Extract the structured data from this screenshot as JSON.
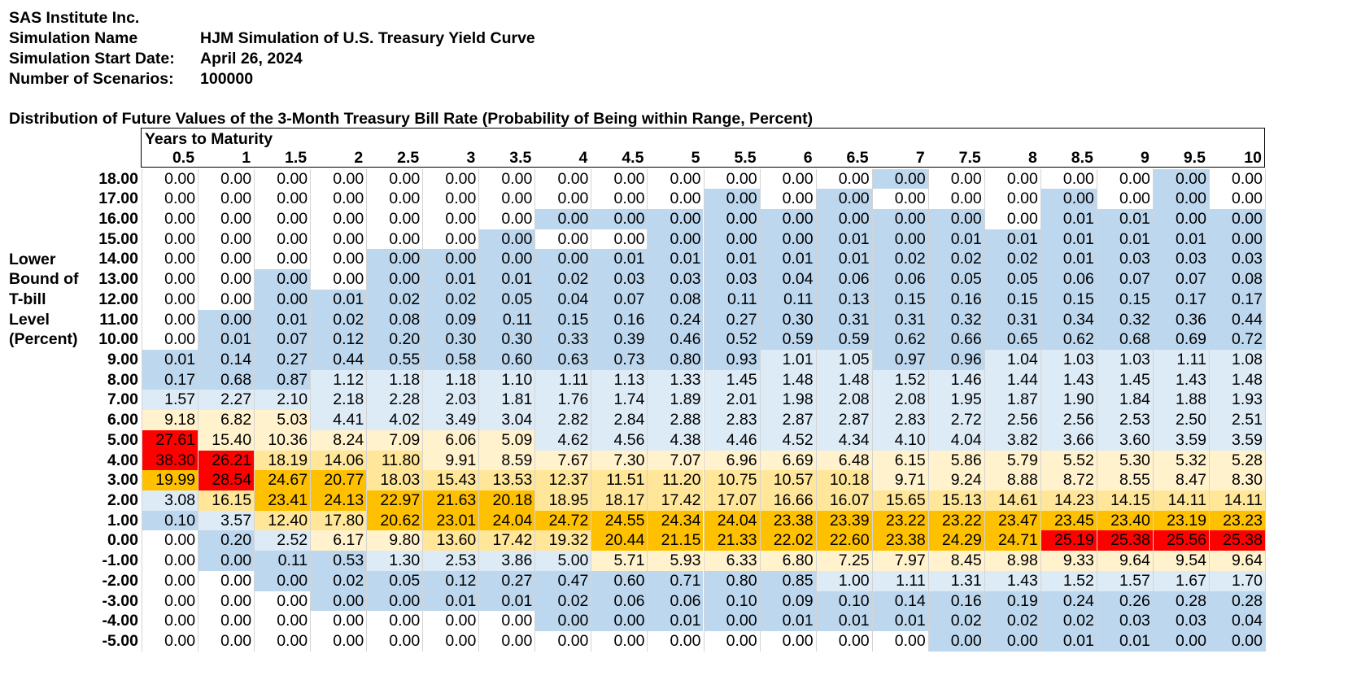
{
  "header": {
    "company": "SAS Institute Inc.",
    "sim_name_label": "Simulation Name",
    "sim_name_value": "HJM Simulation of U.S. Treasury Yield Curve",
    "start_label": "Simulation Start Date:",
    "start_value": "April 26, 2024",
    "scenarios_label": "Number of Scenarios:",
    "scenarios_value": "100000"
  },
  "table": {
    "title": "Distribution of Future Values of the 3-Month Treasury Bill Rate (Probability of Being within Range, Percent)",
    "years_header": "Years to Maturity",
    "side_label": [
      "Lower",
      "Bound of",
      "T-bill",
      "Level",
      "(Percent)"
    ],
    "years": [
      "0.5",
      "1",
      "1.5",
      "2",
      "2.5",
      "3",
      "3.5",
      "4",
      "4.5",
      "5",
      "5.5",
      "6",
      "6.5",
      "7",
      "7.5",
      "8",
      "8.5",
      "9",
      "9.5",
      "10"
    ],
    "rows": [
      {
        "label": "18.00",
        "values": [
          "0.00",
          "0.00",
          "0.00",
          "0.00",
          "0.00",
          "0.00",
          "0.00",
          "0.00",
          "0.00",
          "0.00",
          "0.00",
          "0.00",
          "0.00",
          "0.00",
          "0.00",
          "0.00",
          "0.00",
          "0.00",
          "0.00",
          "0.00"
        ],
        "fills": [
          "w",
          "w",
          "w",
          "w",
          "w",
          "w",
          "w",
          "w",
          "w",
          "w",
          "w",
          "w",
          "w",
          "b",
          "w",
          "w",
          "w",
          "w",
          "b",
          "w"
        ]
      },
      {
        "label": "17.00",
        "values": [
          "0.00",
          "0.00",
          "0.00",
          "0.00",
          "0.00",
          "0.00",
          "0.00",
          "0.00",
          "0.00",
          "0.00",
          "0.00",
          "0.00",
          "0.00",
          "0.00",
          "0.00",
          "0.00",
          "0.00",
          "0.00",
          "0.00",
          "0.00"
        ],
        "fills": [
          "w",
          "w",
          "w",
          "w",
          "w",
          "w",
          "w",
          "w",
          "w",
          "w",
          "b",
          "w",
          "b",
          "w",
          "w",
          "w",
          "b",
          "w",
          "b",
          "w"
        ]
      },
      {
        "label": "16.00",
        "values": [
          "0.00",
          "0.00",
          "0.00",
          "0.00",
          "0.00",
          "0.00",
          "0.00",
          "0.00",
          "0.00",
          "0.00",
          "0.00",
          "0.00",
          "0.00",
          "0.00",
          "0.00",
          "0.00",
          "0.01",
          "0.01",
          "0.00",
          "0.00"
        ],
        "fills": [
          "w",
          "w",
          "w",
          "w",
          "w",
          "w",
          "w",
          "b",
          "b",
          "b",
          "b",
          "b",
          "b",
          "b",
          "b",
          "w",
          "b",
          "b",
          "b",
          "b"
        ]
      },
      {
        "label": "15.00",
        "values": [
          "0.00",
          "0.00",
          "0.00",
          "0.00",
          "0.00",
          "0.00",
          "0.00",
          "0.00",
          "0.00",
          "0.00",
          "0.00",
          "0.00",
          "0.01",
          "0.00",
          "0.01",
          "0.01",
          "0.01",
          "0.01",
          "0.01",
          "0.00"
        ],
        "fills": [
          "w",
          "w",
          "w",
          "w",
          "w",
          "w",
          "b",
          "w",
          "w",
          "b",
          "b",
          "b",
          "b",
          "b",
          "b",
          "b",
          "b",
          "b",
          "b",
          "b"
        ]
      },
      {
        "label": "14.00",
        "values": [
          "0.00",
          "0.00",
          "0.00",
          "0.00",
          "0.00",
          "0.00",
          "0.00",
          "0.00",
          "0.01",
          "0.01",
          "0.01",
          "0.01",
          "0.01",
          "0.02",
          "0.02",
          "0.02",
          "0.01",
          "0.03",
          "0.03",
          "0.03"
        ],
        "fills": [
          "w",
          "w",
          "w",
          "w",
          "b",
          "b",
          "b",
          "b",
          "b",
          "b",
          "b",
          "b",
          "b",
          "b",
          "b",
          "b",
          "b",
          "b",
          "b",
          "b"
        ]
      },
      {
        "label": "13.00",
        "values": [
          "0.00",
          "0.00",
          "0.00",
          "0.00",
          "0.00",
          "0.01",
          "0.01",
          "0.02",
          "0.03",
          "0.03",
          "0.03",
          "0.04",
          "0.06",
          "0.06",
          "0.05",
          "0.05",
          "0.06",
          "0.07",
          "0.07",
          "0.08"
        ],
        "fills": [
          "w",
          "w",
          "b",
          "w",
          "b",
          "b",
          "b",
          "b",
          "b",
          "b",
          "b",
          "b",
          "b",
          "b",
          "b",
          "b",
          "b",
          "b",
          "b",
          "b"
        ]
      },
      {
        "label": "12.00",
        "values": [
          "0.00",
          "0.00",
          "0.00",
          "0.01",
          "0.02",
          "0.02",
          "0.05",
          "0.04",
          "0.07",
          "0.08",
          "0.11",
          "0.11",
          "0.13",
          "0.15",
          "0.16",
          "0.15",
          "0.15",
          "0.15",
          "0.17",
          "0.17"
        ],
        "fills": [
          "w",
          "w",
          "b",
          "b",
          "b",
          "b",
          "b",
          "b",
          "b",
          "b",
          "b",
          "b",
          "b",
          "b",
          "b",
          "b",
          "b",
          "b",
          "b",
          "b"
        ]
      },
      {
        "label": "11.00",
        "values": [
          "0.00",
          "0.00",
          "0.01",
          "0.02",
          "0.08",
          "0.09",
          "0.11",
          "0.15",
          "0.16",
          "0.24",
          "0.27",
          "0.30",
          "0.31",
          "0.31",
          "0.32",
          "0.31",
          "0.34",
          "0.32",
          "0.36",
          "0.44"
        ],
        "fills": [
          "w",
          "b",
          "b",
          "b",
          "b",
          "b",
          "b",
          "b",
          "b",
          "b",
          "b",
          "b",
          "b",
          "b",
          "b",
          "b",
          "b",
          "b",
          "b",
          "b"
        ]
      },
      {
        "label": "10.00",
        "values": [
          "0.00",
          "0.01",
          "0.07",
          "0.12",
          "0.20",
          "0.30",
          "0.30",
          "0.33",
          "0.39",
          "0.46",
          "0.52",
          "0.59",
          "0.59",
          "0.62",
          "0.66",
          "0.65",
          "0.62",
          "0.68",
          "0.69",
          "0.72"
        ],
        "fills": [
          "w",
          "b",
          "b",
          "b",
          "b",
          "b",
          "b",
          "b",
          "b",
          "b",
          "b",
          "b",
          "b",
          "b",
          "b",
          "b",
          "b",
          "b",
          "b",
          "b"
        ]
      },
      {
        "label": "9.00",
        "values": [
          "0.01",
          "0.14",
          "0.27",
          "0.44",
          "0.55",
          "0.58",
          "0.60",
          "0.63",
          "0.73",
          "0.80",
          "0.93",
          "1.01",
          "1.05",
          "0.97",
          "0.96",
          "1.04",
          "1.03",
          "1.03",
          "1.11",
          "1.08"
        ],
        "fills": [
          "b",
          "b",
          "b",
          "b",
          "b",
          "b",
          "b",
          "b",
          "b",
          "b",
          "b",
          "l",
          "l",
          "b",
          "b",
          "l",
          "l",
          "l",
          "l",
          "l"
        ]
      },
      {
        "label": "8.00",
        "values": [
          "0.17",
          "0.68",
          "0.87",
          "1.12",
          "1.18",
          "1.18",
          "1.10",
          "1.11",
          "1.13",
          "1.33",
          "1.45",
          "1.48",
          "1.48",
          "1.52",
          "1.46",
          "1.44",
          "1.43",
          "1.45",
          "1.43",
          "1.48"
        ],
        "fills": [
          "b",
          "b",
          "b",
          "l",
          "l",
          "l",
          "l",
          "l",
          "l",
          "l",
          "l",
          "l",
          "l",
          "l",
          "l",
          "l",
          "l",
          "l",
          "l",
          "l"
        ]
      },
      {
        "label": "7.00",
        "values": [
          "1.57",
          "2.27",
          "2.10",
          "2.18",
          "2.28",
          "2.03",
          "1.81",
          "1.76",
          "1.74",
          "1.89",
          "2.01",
          "1.98",
          "2.08",
          "2.08",
          "1.95",
          "1.87",
          "1.90",
          "1.84",
          "1.88",
          "1.93"
        ],
        "fills": [
          "l",
          "l",
          "l",
          "l",
          "l",
          "l",
          "l",
          "l",
          "l",
          "l",
          "l",
          "l",
          "l",
          "l",
          "l",
          "l",
          "l",
          "l",
          "l",
          "l"
        ]
      },
      {
        "label": "6.00",
        "values": [
          "9.18",
          "6.82",
          "5.03",
          "4.41",
          "4.02",
          "3.49",
          "3.04",
          "2.82",
          "2.84",
          "2.88",
          "2.83",
          "2.87",
          "2.87",
          "2.83",
          "2.72",
          "2.56",
          "2.56",
          "2.53",
          "2.50",
          "2.51"
        ],
        "fills": [
          "y",
          "y",
          "y",
          "l",
          "l",
          "l",
          "l",
          "l",
          "l",
          "l",
          "l",
          "l",
          "l",
          "l",
          "l",
          "l",
          "l",
          "l",
          "l",
          "l"
        ]
      },
      {
        "label": "5.00",
        "values": [
          "27.61",
          "15.40",
          "10.36",
          "8.24",
          "7.09",
          "6.06",
          "5.09",
          "4.62",
          "4.56",
          "4.38",
          "4.46",
          "4.52",
          "4.34",
          "4.10",
          "4.04",
          "3.82",
          "3.66",
          "3.60",
          "3.59",
          "3.59"
        ],
        "fills": [
          "r",
          "y",
          "y",
          "y",
          "y",
          "y",
          "y",
          "l",
          "l",
          "l",
          "l",
          "l",
          "l",
          "l",
          "l",
          "l",
          "l",
          "l",
          "l",
          "l"
        ]
      },
      {
        "label": "4.00",
        "values": [
          "38.30",
          "26.21",
          "18.19",
          "14.06",
          "11.80",
          "9.91",
          "8.59",
          "7.67",
          "7.30",
          "7.07",
          "6.96",
          "6.69",
          "6.48",
          "6.15",
          "5.86",
          "5.79",
          "5.52",
          "5.30",
          "5.32",
          "5.28"
        ],
        "fills": [
          "r",
          "r",
          "m",
          "m",
          "m",
          "y",
          "y",
          "y",
          "y",
          "y",
          "y",
          "y",
          "y",
          "y",
          "y",
          "y",
          "y",
          "y",
          "y",
          "y"
        ]
      },
      {
        "label": "3.00",
        "values": [
          "19.99",
          "28.54",
          "24.67",
          "20.77",
          "18.03",
          "15.43",
          "13.53",
          "12.37",
          "11.51",
          "11.20",
          "10.75",
          "10.57",
          "10.18",
          "9.71",
          "9.24",
          "8.88",
          "8.72",
          "8.55",
          "8.47",
          "8.30"
        ],
        "fills": [
          "o",
          "r",
          "o",
          "o",
          "m",
          "m",
          "m",
          "m",
          "m",
          "m",
          "m",
          "m",
          "m",
          "y",
          "y",
          "y",
          "y",
          "y",
          "y",
          "y"
        ]
      },
      {
        "label": "2.00",
        "values": [
          "3.08",
          "16.15",
          "23.41",
          "24.13",
          "22.97",
          "21.63",
          "20.18",
          "18.95",
          "18.17",
          "17.42",
          "17.07",
          "16.66",
          "16.07",
          "15.65",
          "15.13",
          "14.61",
          "14.23",
          "14.15",
          "14.11",
          "14.11"
        ],
        "fills": [
          "l",
          "m",
          "o",
          "o",
          "o",
          "o",
          "o",
          "m",
          "m",
          "m",
          "m",
          "m",
          "m",
          "m",
          "m",
          "m",
          "m",
          "m",
          "m",
          "m"
        ]
      },
      {
        "label": "1.00",
        "values": [
          "0.10",
          "3.57",
          "12.40",
          "17.80",
          "20.62",
          "23.01",
          "24.04",
          "24.72",
          "24.55",
          "24.34",
          "24.04",
          "23.38",
          "23.39",
          "23.22",
          "23.22",
          "23.47",
          "23.45",
          "23.40",
          "23.19",
          "23.23"
        ],
        "fills": [
          "b",
          "l",
          "m",
          "m",
          "o",
          "o",
          "o",
          "o",
          "o",
          "o",
          "o",
          "o",
          "o",
          "o",
          "o",
          "o",
          "o",
          "o",
          "o",
          "o"
        ]
      },
      {
        "label": "0.00",
        "values": [
          "0.00",
          "0.20",
          "2.52",
          "6.17",
          "9.80",
          "13.60",
          "17.42",
          "19.32",
          "20.44",
          "21.15",
          "21.33",
          "22.02",
          "22.60",
          "23.38",
          "24.29",
          "24.71",
          "25.19",
          "25.38",
          "25.56",
          "25.38"
        ],
        "fills": [
          "w",
          "b",
          "l",
          "y",
          "y",
          "m",
          "m",
          "m",
          "o",
          "o",
          "o",
          "o",
          "o",
          "o",
          "o",
          "o",
          "r",
          "r",
          "r",
          "r"
        ]
      },
      {
        "label": "-1.00",
        "values": [
          "0.00",
          "0.00",
          "0.11",
          "0.53",
          "1.30",
          "2.53",
          "3.86",
          "5.00",
          "5.71",
          "5.93",
          "6.33",
          "6.80",
          "7.25",
          "7.97",
          "8.45",
          "8.98",
          "9.33",
          "9.64",
          "9.54",
          "9.64"
        ],
        "fills": [
          "w",
          "b",
          "b",
          "b",
          "l",
          "l",
          "l",
          "l",
          "y",
          "y",
          "y",
          "y",
          "y",
          "y",
          "y",
          "y",
          "y",
          "y",
          "y",
          "y"
        ]
      },
      {
        "label": "-2.00",
        "values": [
          "0.00",
          "0.00",
          "0.00",
          "0.02",
          "0.05",
          "0.12",
          "0.27",
          "0.47",
          "0.60",
          "0.71",
          "0.80",
          "0.85",
          "1.00",
          "1.11",
          "1.31",
          "1.43",
          "1.52",
          "1.57",
          "1.67",
          "1.70"
        ],
        "fills": [
          "w",
          "w",
          "b",
          "b",
          "b",
          "b",
          "b",
          "b",
          "b",
          "b",
          "b",
          "b",
          "l",
          "l",
          "l",
          "l",
          "l",
          "l",
          "l",
          "l"
        ]
      },
      {
        "label": "-3.00",
        "values": [
          "0.00",
          "0.00",
          "0.00",
          "0.00",
          "0.00",
          "0.01",
          "0.01",
          "0.02",
          "0.06",
          "0.06",
          "0.10",
          "0.09",
          "0.10",
          "0.14",
          "0.16",
          "0.19",
          "0.24",
          "0.26",
          "0.28",
          "0.28"
        ],
        "fills": [
          "w",
          "w",
          "w",
          "b",
          "b",
          "b",
          "b",
          "b",
          "b",
          "b",
          "b",
          "b",
          "b",
          "b",
          "b",
          "b",
          "b",
          "b",
          "b",
          "b"
        ]
      },
      {
        "label": "-4.00",
        "values": [
          "0.00",
          "0.00",
          "0.00",
          "0.00",
          "0.00",
          "0.00",
          "0.00",
          "0.00",
          "0.00",
          "0.01",
          "0.00",
          "0.01",
          "0.01",
          "0.01",
          "0.02",
          "0.02",
          "0.02",
          "0.03",
          "0.03",
          "0.04"
        ],
        "fills": [
          "w",
          "w",
          "w",
          "w",
          "w",
          "w",
          "w",
          "b",
          "b",
          "b",
          "b",
          "b",
          "b",
          "b",
          "b",
          "b",
          "b",
          "b",
          "b",
          "b"
        ]
      },
      {
        "label": "-5.00",
        "values": [
          "0.00",
          "0.00",
          "0.00",
          "0.00",
          "0.00",
          "0.00",
          "0.00",
          "0.00",
          "0.00",
          "0.00",
          "0.00",
          "0.00",
          "0.00",
          "0.00",
          "0.00",
          "0.00",
          "0.01",
          "0.01",
          "0.00",
          "0.00"
        ],
        "fills": [
          "w",
          "w",
          "w",
          "w",
          "w",
          "w",
          "w",
          "w",
          "w",
          "w",
          "w",
          "w",
          "w",
          "w",
          "b",
          "b",
          "b",
          "b",
          "b",
          "b"
        ]
      }
    ]
  },
  "colors": {
    "w": "#ffffff",
    "b": "#bdd7ee",
    "l": "#ddebf7",
    "y": "#fff2cc",
    "m": "#ffe699",
    "o": "#ffc000",
    "r": "#ff0000"
  }
}
